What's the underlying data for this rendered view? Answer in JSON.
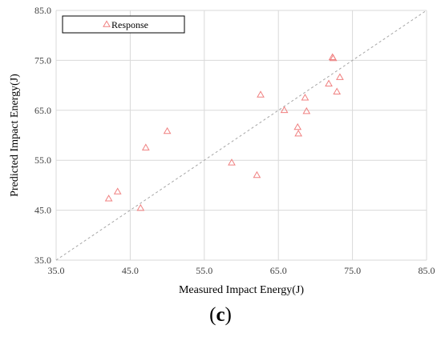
{
  "chart_data": {
    "type": "scatter",
    "xlabel": "Measured Impact Energy(J)",
    "ylabel": "Predicted Impact Energy(J)",
    "xlim": [
      35.0,
      85.0
    ],
    "ylim": [
      35.0,
      85.0
    ],
    "x_ticks": [
      "35.0",
      "45.0",
      "55.0",
      "65.0",
      "75.0",
      "85.0"
    ],
    "y_ticks": [
      "35.0",
      "45.0",
      "55.0",
      "65.0",
      "75.0",
      "85.0"
    ],
    "grid": true,
    "legend_position": "top-left",
    "marker": "triangle",
    "marker_color": "#f08080",
    "reference_line": "y = x (dashed, gray)",
    "series": [
      {
        "name": "Response",
        "points": [
          {
            "x": 42.1,
            "y": 47.3
          },
          {
            "x": 43.3,
            "y": 48.7
          },
          {
            "x": 46.4,
            "y": 45.4
          },
          {
            "x": 47.1,
            "y": 57.5
          },
          {
            "x": 50.0,
            "y": 60.8
          },
          {
            "x": 58.7,
            "y": 54.5
          },
          {
            "x": 62.1,
            "y": 52.0
          },
          {
            "x": 62.6,
            "y": 68.1
          },
          {
            "x": 65.8,
            "y": 65.0
          },
          {
            "x": 67.6,
            "y": 61.6
          },
          {
            "x": 67.7,
            "y": 60.3
          },
          {
            "x": 68.6,
            "y": 67.5
          },
          {
            "x": 68.8,
            "y": 64.8
          },
          {
            "x": 71.8,
            "y": 70.3
          },
          {
            "x": 72.3,
            "y": 75.6
          },
          {
            "x": 72.4,
            "y": 75.4
          },
          {
            "x": 72.9,
            "y": 68.7
          },
          {
            "x": 73.3,
            "y": 71.6
          }
        ]
      }
    ]
  },
  "caption": {
    "open": "(",
    "letter": "c",
    "close": ")"
  }
}
